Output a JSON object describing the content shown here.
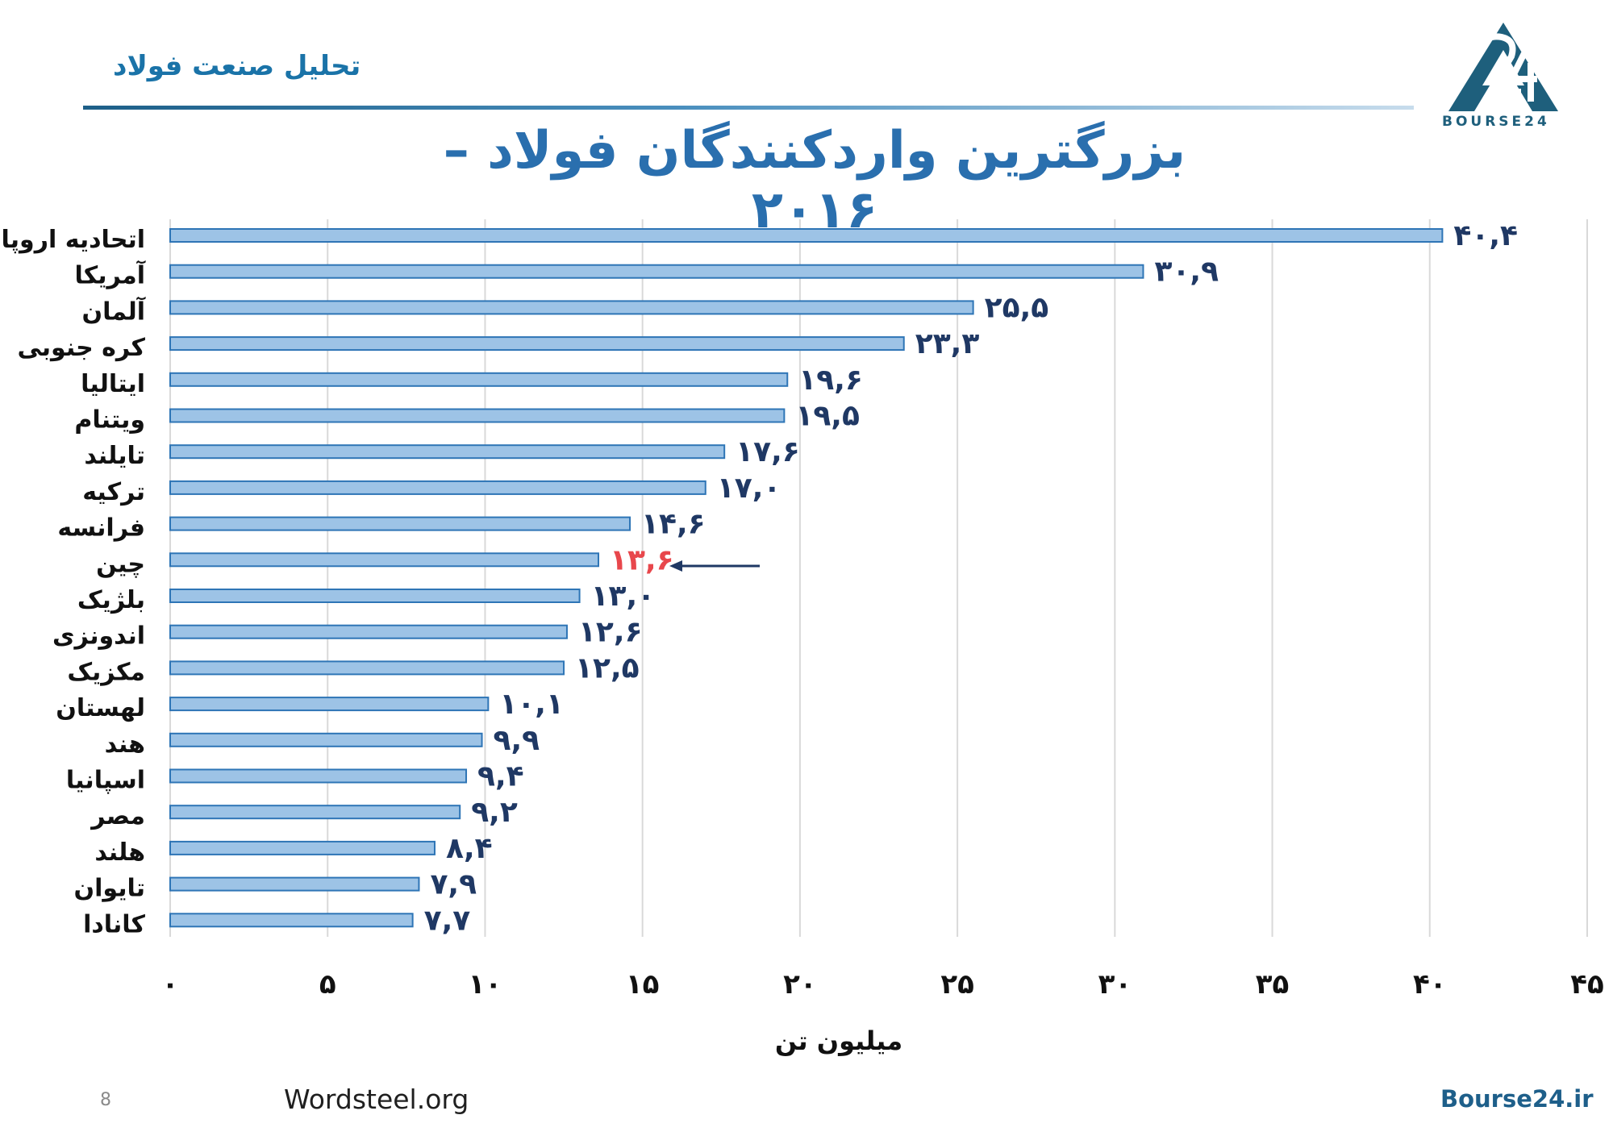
{
  "header": {
    "section_title": "تحلیل صنعت فولاد",
    "logo_text": "BOURSE24"
  },
  "footer": {
    "page_number": "8",
    "source": "Wordsteel.org",
    "site": "Bourse24.ir"
  },
  "colors": {
    "bar_fill": "#9dc3e6",
    "bar_stroke": "#2e75b6",
    "value_label": "#1f3864",
    "highlight": "#e8474c",
    "title": "#2a6fae"
  },
  "chart_data": {
    "type": "bar",
    "orientation": "horizontal",
    "title": "بزرگترین واردکنندگان فولاد – ۲۰۱۶",
    "xlabel": "میلیون تن",
    "ylabel": "",
    "xlim": [
      0,
      45
    ],
    "x_ticks": [
      0,
      5,
      10,
      15,
      20,
      25,
      30,
      35,
      40,
      45
    ],
    "x_tick_labels": [
      "۰",
      "۵",
      "۱۰",
      "۱۵",
      "۲۰",
      "۲۵",
      "۳۰",
      "۳۵",
      "۴۰",
      "۴۵"
    ],
    "grid": "vertical",
    "categories": [
      "اتحادیه اروپا",
      "آمریکا",
      "آلمان",
      "کره جنوبی",
      "ایتالیا",
      "ویتنام",
      "تایلند",
      "ترکیه",
      "فرانسه",
      "چین",
      "بلژیک",
      "اندونزی",
      "مکزیک",
      "لهستان",
      "هند",
      "اسپانیا",
      "مصر",
      "هلند",
      "تایوان",
      "کانادا"
    ],
    "values": [
      40.4,
      30.9,
      25.5,
      23.3,
      19.6,
      19.5,
      17.6,
      17.0,
      14.6,
      13.6,
      13.0,
      12.6,
      12.5,
      10.1,
      9.9,
      9.4,
      9.2,
      8.4,
      7.9,
      7.7
    ],
    "value_labels": [
      "۴۰,۴",
      "۳۰,۹",
      "۲۵,۵",
      "۲۳,۳",
      "۱۹,۶",
      "۱۹,۵",
      "۱۷,۶",
      "۱۷,۰",
      "۱۴,۶",
      "۱۳,۶",
      "۱۳,۰",
      "۱۲,۶",
      "۱۲,۵",
      "۱۰,۱",
      "۹,۹",
      "۹,۴",
      "۹,۲",
      "۸,۴",
      "۷,۹",
      "۷,۷"
    ],
    "highlight_index": 9
  }
}
